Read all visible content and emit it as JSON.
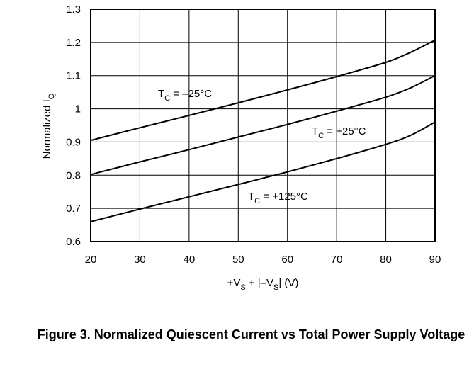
{
  "figure_caption": "Figure 3. Normalized Quiescent Current vs Total Power Supply Voltage",
  "chart_data": {
    "type": "line",
    "title": "",
    "xlabel": {
      "pre": "+V",
      "sub1": "S",
      "mid": " + |–V",
      "sub2": "S",
      "post": "| (V)"
    },
    "ylabel": {
      "pre": "Normalized I",
      "sub": "Q"
    },
    "xlim": [
      20,
      90
    ],
    "ylim": [
      0.6,
      1.3
    ],
    "x_ticks": [
      20,
      30,
      40,
      50,
      60,
      70,
      80,
      90
    ],
    "y_ticks": [
      0.6,
      0.7,
      0.8,
      0.9,
      1,
      1.1,
      1.2,
      1.3
    ],
    "x_tick_labels": [
      "20",
      "30",
      "40",
      "50",
      "60",
      "70",
      "80",
      "90"
    ],
    "y_tick_labels": [
      "0.6",
      "0.7",
      "0.8",
      "0.9",
      "1",
      "1.1",
      "1.2",
      "1.3"
    ],
    "grid": true,
    "legend": "none (curves labeled directly)",
    "line_color": "#000000",
    "series": [
      {
        "label": {
          "pre": "T",
          "sub": "C",
          "post": " = –25°C"
        },
        "x": [
          20,
          30,
          40,
          50,
          60,
          70,
          80,
          85,
          90
        ],
        "y": [
          0.905,
          0.943,
          0.98,
          1.018,
          1.057,
          1.097,
          1.14,
          1.17,
          1.207
        ]
      },
      {
        "label": {
          "pre": "T",
          "sub": "C",
          "post": " = +25°C"
        },
        "x": [
          20,
          30,
          40,
          50,
          60,
          70,
          80,
          85,
          90
        ],
        "y": [
          0.802,
          0.84,
          0.877,
          0.915,
          0.953,
          0.993,
          1.035,
          1.063,
          1.1
        ]
      },
      {
        "label": {
          "pre": "T",
          "sub": "C",
          "post": " = +125°C"
        },
        "x": [
          20,
          30,
          40,
          50,
          60,
          70,
          80,
          85,
          90
        ],
        "y": [
          0.66,
          0.698,
          0.735,
          0.772,
          0.81,
          0.85,
          0.893,
          0.92,
          0.96
        ]
      }
    ]
  }
}
